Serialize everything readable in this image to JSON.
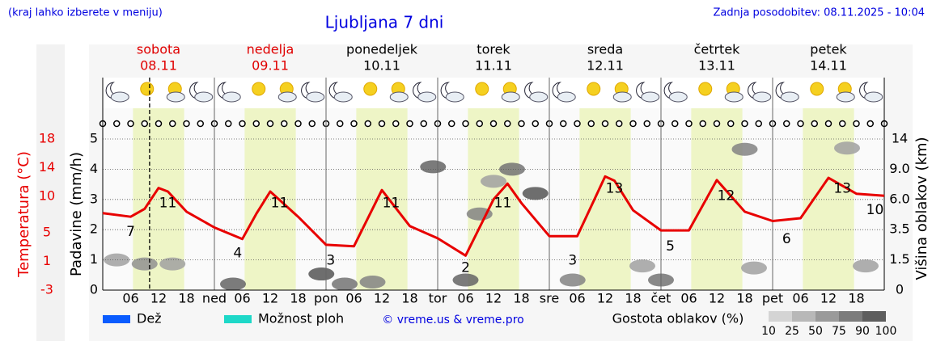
{
  "header": {
    "hint": "(kraj lahko izberete v meniju)",
    "update": "Zadnja posodobitev: 08.11.2025 - 10:04"
  },
  "chart_data": {
    "type": "line",
    "title": "Ljubljana 7 dni",
    "days": [
      {
        "name": "sobota",
        "date": "08.11",
        "color": "#e00000"
      },
      {
        "name": "nedelja",
        "date": "09.11",
        "color": "#e00000"
      },
      {
        "name": "ponedeljek",
        "date": "10.11",
        "color": "#000000"
      },
      {
        "name": "torek",
        "date": "11.11",
        "color": "#000000"
      },
      {
        "name": "sreda",
        "date": "12.11",
        "color": "#000000"
      },
      {
        "name": "četrtek",
        "date": "13.11",
        "color": "#000000"
      },
      {
        "name": "petek",
        "date": "14.11",
        "color": "#000000"
      }
    ],
    "xlim": [
      0,
      168
    ],
    "xticks": [
      {
        "value": 6,
        "label": "06"
      },
      {
        "value": 12,
        "label": "12"
      },
      {
        "value": 18,
        "label": "18"
      },
      {
        "value": 24,
        "label": "ned"
      },
      {
        "value": 30,
        "label": "06"
      },
      {
        "value": 36,
        "label": "12"
      },
      {
        "value": 42,
        "label": "18"
      },
      {
        "value": 48,
        "label": "pon"
      },
      {
        "value": 54,
        "label": "06"
      },
      {
        "value": 60,
        "label": "12"
      },
      {
        "value": 66,
        "label": "18"
      },
      {
        "value": 72,
        "label": "tor"
      },
      {
        "value": 78,
        "label": "06"
      },
      {
        "value": 84,
        "label": "12"
      },
      {
        "value": 90,
        "label": "18"
      },
      {
        "value": 96,
        "label": "sre"
      },
      {
        "value": 102,
        "label": "06"
      },
      {
        "value": 108,
        "label": "12"
      },
      {
        "value": 114,
        "label": "18"
      },
      {
        "value": 120,
        "label": "čet"
      },
      {
        "value": 126,
        "label": "06"
      },
      {
        "value": 132,
        "label": "12"
      },
      {
        "value": 138,
        "label": "18"
      },
      {
        "value": 144,
        "label": "pet"
      },
      {
        "value": 150,
        "label": "06"
      },
      {
        "value": 156,
        "label": "12"
      },
      {
        "value": 162,
        "label": "18"
      }
    ],
    "y_label": "Padavine (mm/h)",
    "ylim": [
      0,
      5
    ],
    "yticks": [
      0,
      1,
      2,
      3,
      4,
      5
    ],
    "temp_label": "Temperatura (°C)",
    "temp_lim": [
      -3,
      18
    ],
    "temp_ticks": [
      18,
      14,
      10,
      5,
      1,
      -3
    ],
    "y2_label": "Višina oblakov (km)",
    "y2lim": [
      0,
      14
    ],
    "y2ticks": [
      0,
      1.5,
      3.5,
      {
        "value": 6,
        "label": "6.0"
      },
      {
        "value": 9,
        "label": "9.0"
      },
      14
    ],
    "temperature": {
      "color": "#e80000",
      "x": [
        0,
        6,
        9,
        12,
        14,
        18,
        24,
        30,
        33,
        36,
        42,
        48,
        54,
        60,
        66,
        72,
        78,
        84,
        87,
        90,
        96,
        102,
        108,
        110,
        114,
        120,
        126,
        132,
        138,
        144,
        150,
        156,
        162,
        168
      ],
      "values": [
        7.7,
        7.2,
        8.3,
        11.2,
        10.7,
        7.9,
        5.7,
        4.1,
        7.6,
        10.7,
        7.2,
        3.3,
        3.1,
        10.9,
        5.9,
        4.2,
        1.8,
        9.6,
        11.8,
        9.1,
        4.5,
        4.5,
        12.8,
        12.2,
        8.1,
        5.3,
        5.3,
        12.3,
        7.9,
        6.6,
        7.0,
        12.6,
        10.4,
        10.1
      ]
    },
    "extremes": {
      "x": [
        6,
        14,
        29,
        38,
        49,
        62,
        78,
        86,
        101,
        110,
        122,
        134,
        147,
        159,
        166
      ],
      "values": [
        7,
        11,
        4,
        11,
        3,
        11,
        2,
        11,
        3,
        13,
        5,
        12,
        6,
        13,
        10
      ]
    },
    "clouds": {
      "x": [
        3,
        9,
        15,
        28,
        47,
        52,
        58,
        71,
        78,
        81,
        84,
        88,
        93,
        101,
        116,
        120,
        138,
        140,
        160,
        164
      ],
      "y2": [
        1.5,
        1.3,
        1.3,
        0.3,
        0.8,
        0.3,
        0.4,
        9.4,
        0.5,
        4.8,
        7.8,
        9,
        6.6,
        0.5,
        1.2,
        0.5,
        12.3,
        1.1,
        12.5,
        1.2
      ],
      "density": [
        40,
        50,
        40,
        80,
        90,
        70,
        60,
        80,
        80,
        60,
        40,
        70,
        90,
        60,
        40,
        70,
        60,
        40,
        40,
        40
      ]
    },
    "now": 10.07,
    "daylight": [
      6.5,
      17.5
    ],
    "legend": [
      {
        "name": "Dež",
        "color": "#0a5cff"
      },
      {
        "name": "Možnost ploh",
        "color": "#1ed8c8"
      }
    ],
    "credit": "© vreme.us & vreme.pro",
    "density_title": "Gostota oblakov (%)",
    "density_scale": [
      10,
      25,
      50,
      75,
      90,
      100
    ]
  }
}
